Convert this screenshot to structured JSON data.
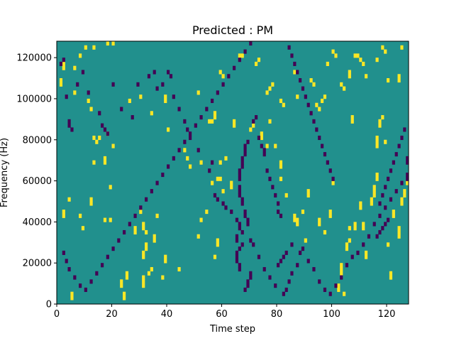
{
  "chart_data": {
    "type": "heatmap",
    "title": "Predicted : PM",
    "xlabel": "Time step",
    "ylabel": "Frequency (Hz)",
    "xlim": [
      0,
      128
    ],
    "ylim": [
      0,
      128000
    ],
    "x_ticks": [
      0,
      20,
      40,
      60,
      80,
      100,
      120
    ],
    "y_ticks": [
      0,
      20000,
      40000,
      60000,
      80000,
      100000,
      120000
    ],
    "x_tick_labels": [
      "0",
      "20",
      "40",
      "60",
      "80",
      "100",
      "120"
    ],
    "y_tick_labels": [
      "0",
      "20000",
      "40000",
      "60000",
      "80000",
      "100000",
      "120000"
    ],
    "n_time_steps": 128,
    "n_freq_bins": 64,
    "freq_bin_width_hz": 2000,
    "colormap": "viridis",
    "values_legend": {
      "0": "low",
      "1": "neutral (background)",
      "2": "high"
    },
    "background_value": 1,
    "colors": {
      "low": "#440154",
      "neutral": "#21908d",
      "high": "#fde725"
    },
    "grid": false,
    "cells_high": [
      [
        5,
        1
      ],
      [
        5,
        2
      ],
      [
        24,
        1
      ],
      [
        24,
        2
      ],
      [
        23,
        4
      ],
      [
        23,
        5
      ],
      [
        31,
        4
      ],
      [
        31,
        5
      ],
      [
        31,
        6
      ],
      [
        33,
        7
      ],
      [
        34,
        8
      ],
      [
        28,
        17
      ],
      [
        28,
        18
      ],
      [
        30,
        22
      ],
      [
        32,
        13
      ],
      [
        32,
        14
      ],
      [
        31,
        11
      ],
      [
        31,
        12
      ],
      [
        36,
        21
      ],
      [
        12,
        24
      ],
      [
        12,
        25
      ],
      [
        19,
        20
      ],
      [
        31,
        18
      ],
      [
        31,
        19
      ],
      [
        32,
        17
      ],
      [
        35,
        16
      ],
      [
        35,
        15
      ],
      [
        39,
        10
      ],
      [
        39,
        11
      ],
      [
        44,
        8
      ],
      [
        51,
        16
      ],
      [
        57,
        11
      ],
      [
        58,
        15
      ],
      [
        58,
        14
      ],
      [
        38,
        6
      ],
      [
        25,
        6
      ],
      [
        25,
        7
      ],
      [
        2,
        21
      ],
      [
        2,
        22
      ],
      [
        4,
        25
      ],
      [
        8,
        21
      ],
      [
        9,
        18
      ],
      [
        20,
        38
      ],
      [
        19,
        28
      ],
      [
        17,
        34
      ],
      [
        17,
        35
      ],
      [
        15,
        40
      ],
      [
        18,
        41
      ],
      [
        13,
        40
      ],
      [
        14,
        39
      ],
      [
        13,
        34
      ],
      [
        17,
        20
      ],
      [
        12,
        47
      ],
      [
        11,
        49
      ],
      [
        6,
        51
      ],
      [
        2,
        57
      ],
      [
        2,
        58
      ],
      [
        1,
        53
      ],
      [
        1,
        54
      ],
      [
        6,
        57
      ],
      [
        8,
        60
      ],
      [
        10,
        62
      ],
      [
        13,
        62
      ],
      [
        18,
        63
      ],
      [
        20,
        63
      ],
      [
        26,
        49
      ],
      [
        30,
        50
      ],
      [
        34,
        46
      ],
      [
        39,
        49
      ],
      [
        39,
        50
      ],
      [
        40,
        42
      ],
      [
        51,
        51
      ],
      [
        55,
        44
      ],
      [
        52,
        34
      ],
      [
        46,
        37
      ],
      [
        47,
        35
      ],
      [
        48,
        33
      ],
      [
        59,
        34
      ],
      [
        61,
        35
      ],
      [
        56,
        29
      ],
      [
        58,
        30
      ],
      [
        59,
        30
      ],
      [
        52,
        20
      ],
      [
        54,
        22
      ],
      [
        60,
        27
      ],
      [
        63,
        28
      ],
      [
        63,
        29
      ],
      [
        70,
        42
      ],
      [
        71,
        43
      ],
      [
        74,
        40
      ],
      [
        74,
        41
      ],
      [
        76,
        38
      ],
      [
        81,
        33
      ],
      [
        81,
        34
      ],
      [
        77,
        44
      ],
      [
        79,
        38
      ],
      [
        81,
        30
      ],
      [
        83,
        26
      ],
      [
        86,
        21
      ],
      [
        86,
        20
      ],
      [
        87,
        20
      ],
      [
        87,
        19
      ],
      [
        89,
        22
      ],
      [
        90,
        15
      ],
      [
        91,
        26
      ],
      [
        91,
        27
      ],
      [
        95,
        19
      ],
      [
        95,
        20
      ],
      [
        97,
        17
      ],
      [
        99,
        21
      ],
      [
        99,
        22
      ],
      [
        100,
        29
      ],
      [
        102,
        3
      ],
      [
        102,
        4
      ],
      [
        103,
        7
      ],
      [
        103,
        8
      ],
      [
        103,
        9
      ],
      [
        104,
        2
      ],
      [
        105,
        13
      ],
      [
        105,
        14
      ],
      [
        106,
        15
      ],
      [
        106,
        18
      ],
      [
        108,
        18
      ],
      [
        108,
        19
      ],
      [
        110,
        23
      ],
      [
        110,
        24
      ],
      [
        111,
        18
      ],
      [
        111,
        19
      ],
      [
        112,
        11
      ],
      [
        112,
        12
      ],
      [
        114,
        24
      ],
      [
        114,
        25
      ],
      [
        115,
        26
      ],
      [
        115,
        27
      ],
      [
        115,
        28
      ],
      [
        116,
        30
      ],
      [
        116,
        31
      ],
      [
        116,
        38
      ],
      [
        116,
        39
      ],
      [
        116,
        40
      ],
      [
        117,
        43
      ],
      [
        117,
        44
      ],
      [
        118,
        45
      ],
      [
        119,
        39
      ],
      [
        120,
        14
      ],
      [
        121,
        6
      ],
      [
        121,
        7
      ],
      [
        122,
        21
      ],
      [
        122,
        22
      ],
      [
        124,
        16
      ],
      [
        124,
        17
      ],
      [
        124,
        18
      ],
      [
        125,
        24
      ],
      [
        125,
        25
      ],
      [
        126,
        26
      ],
      [
        126,
        27
      ],
      [
        127,
        29
      ],
      [
        107,
        44
      ],
      [
        107,
        45
      ],
      [
        106,
        55
      ],
      [
        106,
        56
      ],
      [
        108,
        60
      ],
      [
        109,
        60
      ],
      [
        110,
        59
      ],
      [
        111,
        58
      ],
      [
        112,
        55
      ],
      [
        116,
        59
      ],
      [
        118,
        62
      ],
      [
        119,
        61
      ],
      [
        120,
        54
      ],
      [
        124,
        54
      ],
      [
        124,
        55
      ],
      [
        125,
        62
      ],
      [
        100,
        61
      ],
      [
        101,
        60
      ],
      [
        98,
        58
      ],
      [
        92,
        54
      ],
      [
        93,
        53
      ],
      [
        94,
        48
      ],
      [
        95,
        47
      ],
      [
        96,
        49
      ],
      [
        97,
        50
      ],
      [
        103,
        53
      ],
      [
        104,
        52
      ],
      [
        86,
        56
      ],
      [
        87,
        50
      ],
      [
        81,
        49
      ],
      [
        82,
        48
      ],
      [
        76,
        51
      ],
      [
        77,
        52
      ],
      [
        78,
        53
      ],
      [
        72,
        58
      ],
      [
        73,
        59
      ],
      [
        66,
        60
      ],
      [
        67,
        60
      ],
      [
        59,
        56
      ],
      [
        60,
        55
      ],
      [
        56,
        44
      ],
      [
        57,
        45
      ],
      [
        57,
        46
      ],
      [
        64,
        43
      ],
      [
        64,
        44
      ]
    ],
    "cells_low": [
      [
        1,
        58
      ],
      [
        2,
        59
      ],
      [
        3,
        50
      ],
      [
        4,
        43
      ],
      [
        4,
        44
      ],
      [
        5,
        42
      ],
      [
        7,
        53
      ],
      [
        9,
        56
      ],
      [
        11,
        51
      ],
      [
        15,
        46
      ],
      [
        16,
        43
      ],
      [
        17,
        42
      ],
      [
        18,
        41
      ],
      [
        20,
        53
      ],
      [
        23,
        47
      ],
      [
        27,
        45
      ],
      [
        29,
        53
      ],
      [
        33,
        55
      ],
      [
        35,
        56
      ],
      [
        36,
        52
      ],
      [
        38,
        53
      ],
      [
        40,
        56
      ],
      [
        41,
        55
      ],
      [
        42,
        50
      ],
      [
        44,
        47
      ],
      [
        46,
        44
      ],
      [
        47,
        42
      ],
      [
        48,
        40
      ],
      [
        51,
        37
      ],
      [
        55,
        32
      ],
      [
        56,
        34
      ],
      [
        58,
        25
      ],
      [
        57,
        26
      ],
      [
        60,
        24
      ],
      [
        61,
        23
      ],
      [
        63,
        22
      ],
      [
        65,
        20
      ],
      [
        67,
        17
      ],
      [
        69,
        19
      ],
      [
        70,
        15
      ],
      [
        71,
        14
      ],
      [
        73,
        11
      ],
      [
        75,
        8
      ],
      [
        77,
        6
      ],
      [
        79,
        4
      ],
      [
        82,
        2
      ],
      [
        83,
        3
      ],
      [
        84,
        5
      ],
      [
        85,
        7
      ],
      [
        87,
        9
      ],
      [
        88,
        12
      ],
      [
        89,
        13
      ],
      [
        91,
        10
      ],
      [
        93,
        8
      ],
      [
        95,
        5
      ],
      [
        97,
        3
      ],
      [
        99,
        2
      ],
      [
        101,
        4
      ],
      [
        103,
        6
      ],
      [
        105,
        9
      ],
      [
        107,
        11
      ],
      [
        109,
        12
      ],
      [
        111,
        14
      ],
      [
        113,
        16
      ],
      [
        115,
        19
      ],
      [
        117,
        21
      ],
      [
        119,
        23
      ],
      [
        121,
        25
      ],
      [
        123,
        27
      ],
      [
        125,
        29
      ],
      [
        127,
        30
      ],
      [
        127,
        31
      ],
      [
        2,
        12
      ],
      [
        3,
        10
      ],
      [
        4,
        8
      ],
      [
        6,
        6
      ],
      [
        8,
        4
      ],
      [
        10,
        3
      ],
      [
        12,
        5
      ],
      [
        14,
        7
      ],
      [
        16,
        9
      ],
      [
        18,
        11
      ],
      [
        20,
        13
      ],
      [
        22,
        15
      ],
      [
        24,
        17
      ],
      [
        26,
        19
      ],
      [
        28,
        21
      ],
      [
        30,
        23
      ],
      [
        32,
        25
      ],
      [
        34,
        27
      ],
      [
        36,
        29
      ],
      [
        38,
        31
      ],
      [
        40,
        33
      ],
      [
        42,
        35
      ],
      [
        44,
        37
      ],
      [
        46,
        39
      ],
      [
        48,
        41
      ],
      [
        50,
        43
      ],
      [
        52,
        45
      ],
      [
        54,
        47
      ],
      [
        56,
        49
      ],
      [
        58,
        51
      ],
      [
        60,
        53
      ],
      [
        62,
        55
      ],
      [
        64,
        57
      ],
      [
        66,
        59
      ],
      [
        68,
        61
      ],
      [
        70,
        63
      ],
      [
        66,
        30
      ],
      [
        66,
        31
      ],
      [
        66,
        32
      ],
      [
        67,
        33
      ],
      [
        67,
        34
      ],
      [
        67,
        35
      ],
      [
        68,
        36
      ],
      [
        68,
        37
      ],
      [
        68,
        38
      ],
      [
        69,
        39
      ],
      [
        67,
        24
      ],
      [
        67,
        25
      ],
      [
        66,
        26
      ],
      [
        66,
        27
      ],
      [
        66,
        28
      ],
      [
        68,
        22
      ],
      [
        68,
        21
      ],
      [
        69,
        20
      ],
      [
        66,
        19
      ],
      [
        66,
        18
      ],
      [
        65,
        15
      ],
      [
        65,
        16
      ],
      [
        65,
        10
      ],
      [
        65,
        11
      ],
      [
        65,
        12
      ],
      [
        66,
        13
      ],
      [
        67,
        14
      ],
      [
        66,
        8
      ],
      [
        66,
        9
      ],
      [
        68,
        3
      ],
      [
        69,
        4
      ],
      [
        69,
        5
      ],
      [
        70,
        6
      ],
      [
        70,
        7
      ],
      [
        71,
        44
      ],
      [
        72,
        45
      ],
      [
        73,
        40
      ],
      [
        74,
        38
      ],
      [
        75,
        36
      ],
      [
        75,
        37
      ],
      [
        76,
        32
      ],
      [
        77,
        30
      ],
      [
        78,
        28
      ],
      [
        79,
        26
      ],
      [
        80,
        24
      ],
      [
        80,
        22
      ],
      [
        81,
        21
      ],
      [
        80,
        9
      ],
      [
        81,
        10
      ],
      [
        82,
        11
      ],
      [
        83,
        12
      ],
      [
        85,
        14
      ],
      [
        116,
        16
      ],
      [
        117,
        17
      ],
      [
        118,
        18
      ],
      [
        119,
        19
      ],
      [
        120,
        20
      ],
      [
        117,
        24
      ],
      [
        118,
        26
      ],
      [
        119,
        28
      ],
      [
        120,
        30
      ],
      [
        121,
        32
      ],
      [
        122,
        34
      ],
      [
        123,
        36
      ],
      [
        124,
        38
      ],
      [
        125,
        40
      ],
      [
        126,
        42
      ],
      [
        127,
        34
      ],
      [
        127,
        35
      ],
      [
        84,
        62
      ],
      [
        85,
        60
      ],
      [
        86,
        58
      ],
      [
        87,
        56
      ],
      [
        88,
        54
      ],
      [
        89,
        52
      ],
      [
        90,
        50
      ],
      [
        91,
        48
      ],
      [
        92,
        46
      ],
      [
        93,
        44
      ],
      [
        94,
        42
      ],
      [
        95,
        40
      ],
      [
        96,
        38
      ],
      [
        97,
        36
      ],
      [
        98,
        34
      ],
      [
        99,
        32
      ],
      [
        100,
        30
      ]
    ]
  }
}
